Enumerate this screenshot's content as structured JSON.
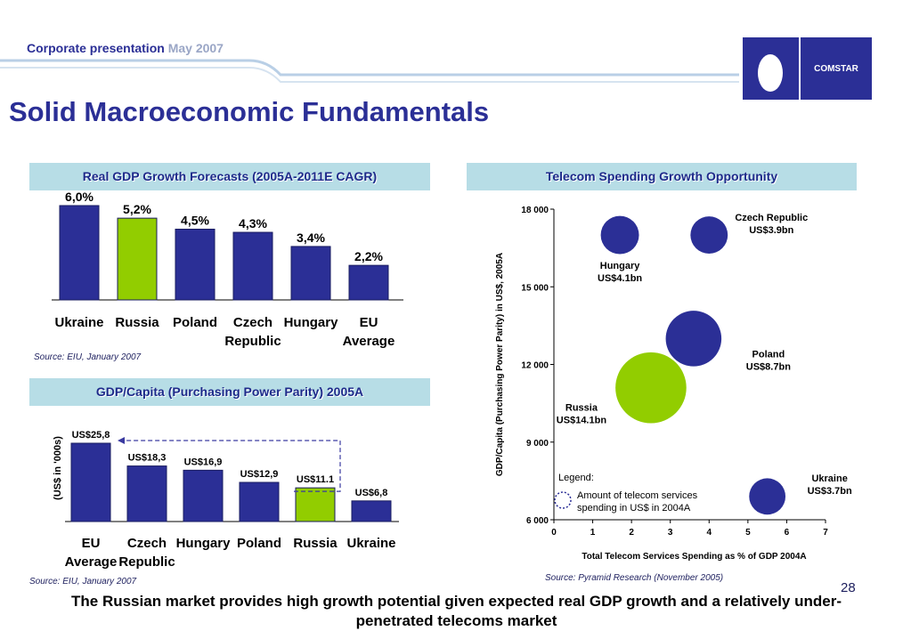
{
  "header": {
    "label": "Corporate presentation",
    "date": "May 2007"
  },
  "title": "Solid Macroeconomic Fundamentals",
  "logo": {
    "text": "COMSTAR",
    "icon": "egg-icon"
  },
  "page_number": "28",
  "colors": {
    "navy": "#2b2f96",
    "green": "#92cd00",
    "panel": "#b7dde6"
  },
  "footer": "The Russian market provides high growth potential given expected real GDP growth and a relatively under-penetrated telecoms market",
  "sources": {
    "gdp_growth": "Source: EIU, January 2007",
    "gdp_capita": "Source: EIU, January 2007",
    "telecom": "Source: Pyramid Research (November 2005)"
  },
  "chart_data": [
    {
      "type": "bar",
      "title": "Real GDP Growth Forecasts (2005A-2011E CAGR)",
      "categories": [
        "Ukraine",
        "Russia",
        "Poland",
        "Czech Republic",
        "Hungary",
        "EU Average"
      ],
      "category_lines": [
        [
          "Ukraine"
        ],
        [
          "Russia"
        ],
        [
          "Poland"
        ],
        [
          "Czech",
          "Republic"
        ],
        [
          "Hungary"
        ],
        [
          "EU",
          "Average"
        ]
      ],
      "values": [
        6.0,
        5.2,
        4.5,
        4.3,
        3.4,
        2.2
      ],
      "labels": [
        "6,0%",
        "5,2%",
        "4,5%",
        "4,3%",
        "3,4%",
        "2,2%"
      ],
      "highlight": "Russia",
      "ylim": [
        0,
        6.0
      ]
    },
    {
      "type": "bar",
      "title": "GDP/Capita (Purchasing Power Parity) 2005A",
      "categories": [
        "EU Average",
        "Czech Republic",
        "Hungary",
        "Poland",
        "Russia",
        "Ukraine"
      ],
      "category_lines": [
        [
          "EU",
          "Average"
        ],
        [
          "Czech",
          "Republic"
        ],
        [
          "Hungary"
        ],
        [
          "Poland"
        ],
        [
          "Russia"
        ],
        [
          "Ukraine"
        ]
      ],
      "values": [
        25.8,
        18.3,
        16.9,
        12.9,
        11.1,
        6.8
      ],
      "labels": [
        "US$25,8",
        "US$18,3",
        "US$16,9",
        "US$12,9",
        "US$11.1",
        "US$6,8"
      ],
      "ylabel": "(US$ in '000s)",
      "highlight": "Russia",
      "ylim": [
        0,
        25.8
      ]
    },
    {
      "type": "scatter",
      "title": "Telecom Spending Growth Opportunity",
      "xlabel": "Total Telecom Services Spending as % of GDP 2004A",
      "ylabel": "GDP/Capita (Purchasing Power Parity) in US$, 2005A",
      "xlim": [
        0,
        7
      ],
      "ylim": [
        6000,
        18000
      ],
      "x_ticks": [
        "0",
        "1",
        "2",
        "3",
        "4",
        "5",
        "6",
        "7"
      ],
      "y_ticks": [
        "6 000",
        "9 000",
        "12 000",
        "15 000",
        "18 000"
      ],
      "series": [
        {
          "name": "Czech Republic",
          "label": [
            "Czech Republic",
            "US$3.9bn"
          ],
          "x": 4.0,
          "y": 17000,
          "size": 3.9
        },
        {
          "name": "Hungary",
          "label": [
            "Hungary",
            "US$4.1bn"
          ],
          "x": 1.7,
          "y": 17000,
          "size": 4.1
        },
        {
          "name": "Poland",
          "label": [
            "Poland",
            "US$8.7bn"
          ],
          "x": 3.6,
          "y": 13000,
          "size": 8.7
        },
        {
          "name": "Russia",
          "label": [
            "Russia",
            "US$14.1bn"
          ],
          "x": 2.5,
          "y": 11100,
          "size": 14.1
        },
        {
          "name": "Ukraine",
          "label": [
            "Ukraine",
            "US$3.7bn"
          ],
          "x": 5.5,
          "y": 6900,
          "size": 3.7
        }
      ],
      "legend": {
        "title": "Legend:",
        "text": [
          "Amount of telecom services",
          "spending in US$ in 2004A"
        ]
      }
    }
  ]
}
